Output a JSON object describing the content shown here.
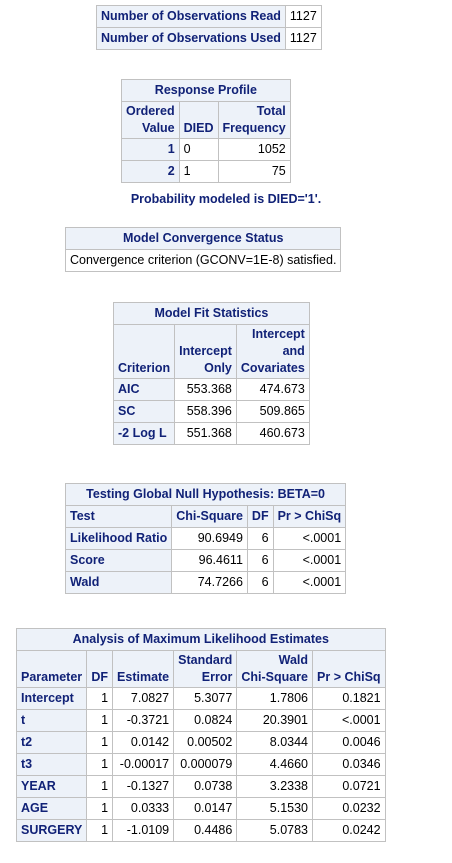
{
  "obs": {
    "rows": [
      {
        "label": "Number of Observations Read",
        "value": "1127"
      },
      {
        "label": "Number of Observations Used",
        "value": "1127"
      }
    ]
  },
  "response_profile": {
    "title": "Response Profile",
    "headers": {
      "ordered_1": "Ordered",
      "ordered_2": "Value",
      "died": "DIED",
      "total_1": "Total",
      "total_2": "Frequency"
    },
    "rows": [
      {
        "ordered": "1",
        "died": "0",
        "freq": "1052"
      },
      {
        "ordered": "2",
        "died": "1",
        "freq": "75"
      }
    ],
    "note": "Probability modeled is DIED='1'."
  },
  "convergence": {
    "title": "Model Convergence Status",
    "message": "Convergence criterion (GCONV=1E-8) satisfied."
  },
  "fit": {
    "title": "Model Fit Statistics",
    "headers": {
      "criterion": "Criterion",
      "int_only_1": "Intercept",
      "int_only_2": "Only",
      "int_cov_1": "Intercept",
      "int_cov_2": "and",
      "int_cov_3": "Covariates"
    },
    "rows": [
      {
        "criterion": "AIC",
        "only": "553.368",
        "cov": "474.673"
      },
      {
        "criterion": "SC",
        "only": "558.396",
        "cov": "509.865"
      },
      {
        "criterion": "-2 Log L",
        "only": "551.368",
        "cov": "460.673"
      }
    ]
  },
  "global_null": {
    "title": "Testing Global Null Hypothesis: BETA=0",
    "headers": {
      "test": "Test",
      "chisq": "Chi-Square",
      "df": "DF",
      "p": "Pr > ChiSq"
    },
    "rows": [
      {
        "test": "Likelihood Ratio",
        "chisq": "90.6949",
        "df": "6",
        "p": "<.0001"
      },
      {
        "test": "Score",
        "chisq": "96.4611",
        "df": "6",
        "p": "<.0001"
      },
      {
        "test": "Wald",
        "chisq": "74.7266",
        "df": "6",
        "p": "<.0001"
      }
    ]
  },
  "mle": {
    "title": "Analysis of Maximum Likelihood Estimates",
    "headers": {
      "param": "Parameter",
      "df": "DF",
      "est": "Estimate",
      "se_1": "Standard",
      "se_2": "Error",
      "wald_1": "Wald",
      "wald_2": "Chi-Square",
      "p": "Pr > ChiSq"
    },
    "rows": [
      {
        "param": "Intercept",
        "df": "1",
        "est": "7.0827",
        "se": "5.3077",
        "wald": "1.7806",
        "p": "0.1821"
      },
      {
        "param": "t",
        "df": "1",
        "est": "-0.3721",
        "se": "0.0824",
        "wald": "20.3901",
        "p": "<.0001"
      },
      {
        "param": "t2",
        "df": "1",
        "est": "0.0142",
        "se": "0.00502",
        "wald": "8.0344",
        "p": "0.0046"
      },
      {
        "param": "t3",
        "df": "1",
        "est": "-0.00017",
        "se": "0.000079",
        "wald": "4.4660",
        "p": "0.0346"
      },
      {
        "param": "YEAR",
        "df": "1",
        "est": "-0.1327",
        "se": "0.0738",
        "wald": "3.2338",
        "p": "0.0721"
      },
      {
        "param": "AGE",
        "df": "1",
        "est": "0.0333",
        "se": "0.0147",
        "wald": "5.1530",
        "p": "0.0232"
      },
      {
        "param": "SURGERY",
        "df": "1",
        "est": "-1.0109",
        "se": "0.4486",
        "wald": "5.0783",
        "p": "0.0242"
      }
    ]
  }
}
